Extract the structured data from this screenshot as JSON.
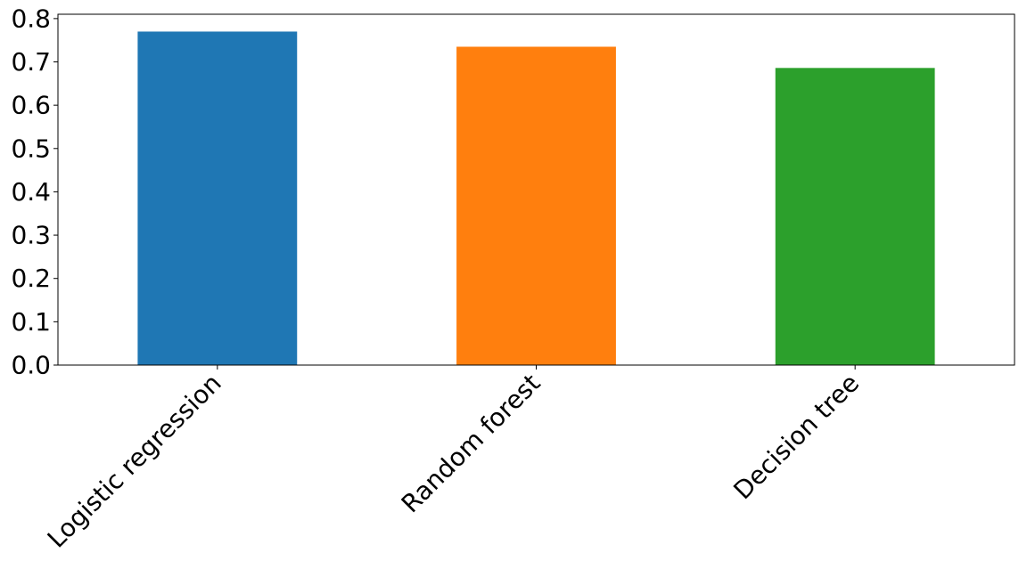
{
  "chart_data": {
    "type": "bar",
    "categories": [
      "Logistic regression",
      "Random forest",
      "Decision tree"
    ],
    "values": [
      0.77,
      0.735,
      0.686
    ],
    "colors": [
      "#1f77b4",
      "#ff7f0e",
      "#2ca02c"
    ],
    "ylim": [
      0,
      0.81
    ],
    "yticks": [
      0.0,
      0.1,
      0.2,
      0.3,
      0.4,
      0.5,
      0.6,
      0.7,
      0.8
    ],
    "ytick_labels": [
      "0.0",
      "0.1",
      "0.2",
      "0.3",
      "0.4",
      "0.5",
      "0.6",
      "0.7",
      "0.8"
    ],
    "grid": false,
    "xtick_rotation_deg": 45
  }
}
